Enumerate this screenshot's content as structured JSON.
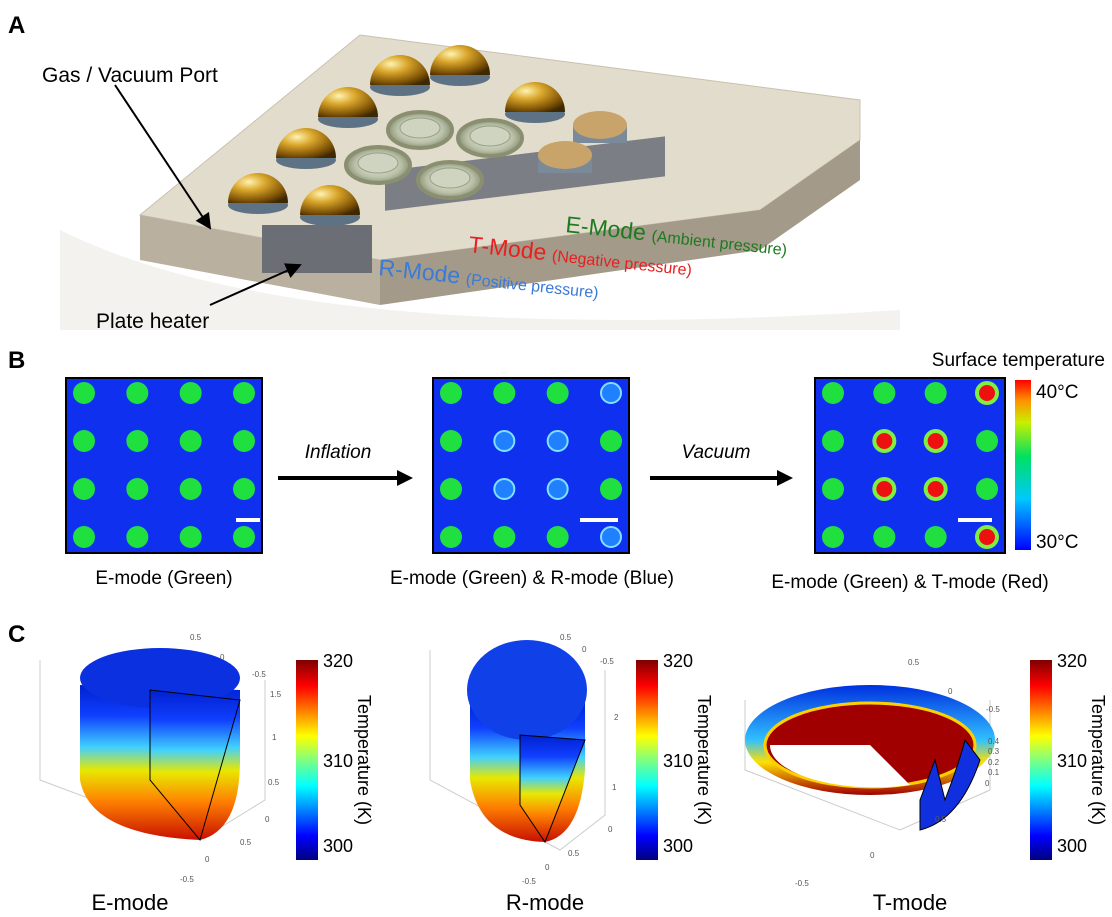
{
  "panel_a": {
    "label": "A",
    "gas_port": "Gas / Vacuum Port",
    "plate_heater": "Plate heater",
    "e_mode": "E-Mode",
    "e_mode_note": "(Ambient pressure)",
    "t_mode": "T-Mode",
    "t_mode_note": "(Negative pressure)",
    "r_mode": "R-Mode",
    "r_mode_note": "(Positive pressure)"
  },
  "panel_b": {
    "label": "B",
    "arrow_1": "Inflation",
    "arrow_2": "Vacuum",
    "captions": [
      "E-mode (Green)",
      "E-mode (Green) & R-mode (Blue)",
      "E-mode (Green) & T-mode (Red)"
    ],
    "colorbar_title": "Surface temperature",
    "colorbar_max": "40°C",
    "colorbar_min": "30°C"
  },
  "panel_c": {
    "label": "C",
    "colorbar_title": "Temperature (K)",
    "colorbar_ticks": [
      "320",
      "310",
      "300"
    ],
    "plots": [
      {
        "caption": "E-mode",
        "ticks": [
          "0.5",
          "0",
          "-0.5",
          "1.5",
          "1",
          "0.5",
          "0",
          "0.5",
          "0",
          "-0.5"
        ]
      },
      {
        "caption": "R-mode",
        "ticks": [
          "0.5",
          "0",
          "-0.5",
          "2",
          "1",
          "0",
          "0.5",
          "0",
          "-0.5"
        ]
      },
      {
        "caption": "T-mode",
        "ticks": [
          "0.5",
          "0",
          "-0.5",
          "0.4",
          "0.3",
          "0.2",
          "0.1",
          "0",
          "0.5",
          "0",
          "-0.5"
        ]
      }
    ]
  }
}
